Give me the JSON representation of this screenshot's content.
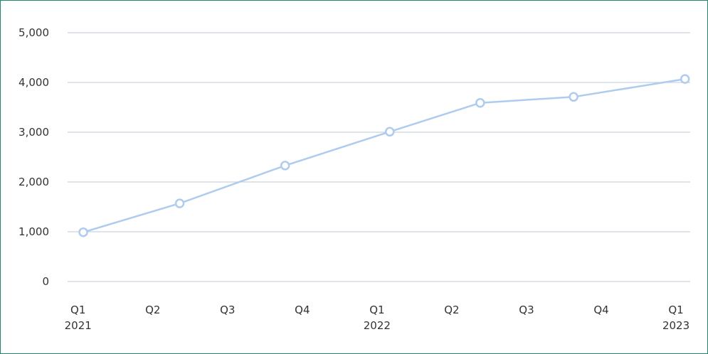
{
  "chart_data": {
    "type": "line",
    "x": [
      0.07,
      1.36,
      2.77,
      4.17,
      5.38,
      6.63,
      8.12
    ],
    "series": [
      {
        "color": "#aecbf0",
        "values": [
          990,
          1570,
          2330,
          3010,
          3590,
          3710,
          4070
        ]
      }
    ],
    "xlim": [
      -0.14,
      8.19
    ],
    "xticks": [
      {
        "value": 0,
        "label": "Q1 2021"
      },
      {
        "value": 1,
        "label": "Q2"
      },
      {
        "value": 2,
        "label": "Q3"
      },
      {
        "value": 3,
        "label": "Q4"
      },
      {
        "value": 4,
        "label": "Q1 2022"
      },
      {
        "value": 5,
        "label": "Q2"
      },
      {
        "value": 6,
        "label": "Q3"
      },
      {
        "value": 7,
        "label": "Q4"
      },
      {
        "value": 8,
        "label": "Q1 2023"
      }
    ],
    "ylim": [
      0,
      5000
    ],
    "yticks": [
      0,
      {
        "value": 1000,
        "label": "1,000"
      },
      {
        "value": 2000,
        "label": "2,000"
      },
      {
        "value": 3000,
        "label": "3,000"
      },
      {
        "value": 4000,
        "label": "4,000"
      },
      {
        "value": 5000,
        "label": "5,000"
      }
    ],
    "grid": true
  }
}
